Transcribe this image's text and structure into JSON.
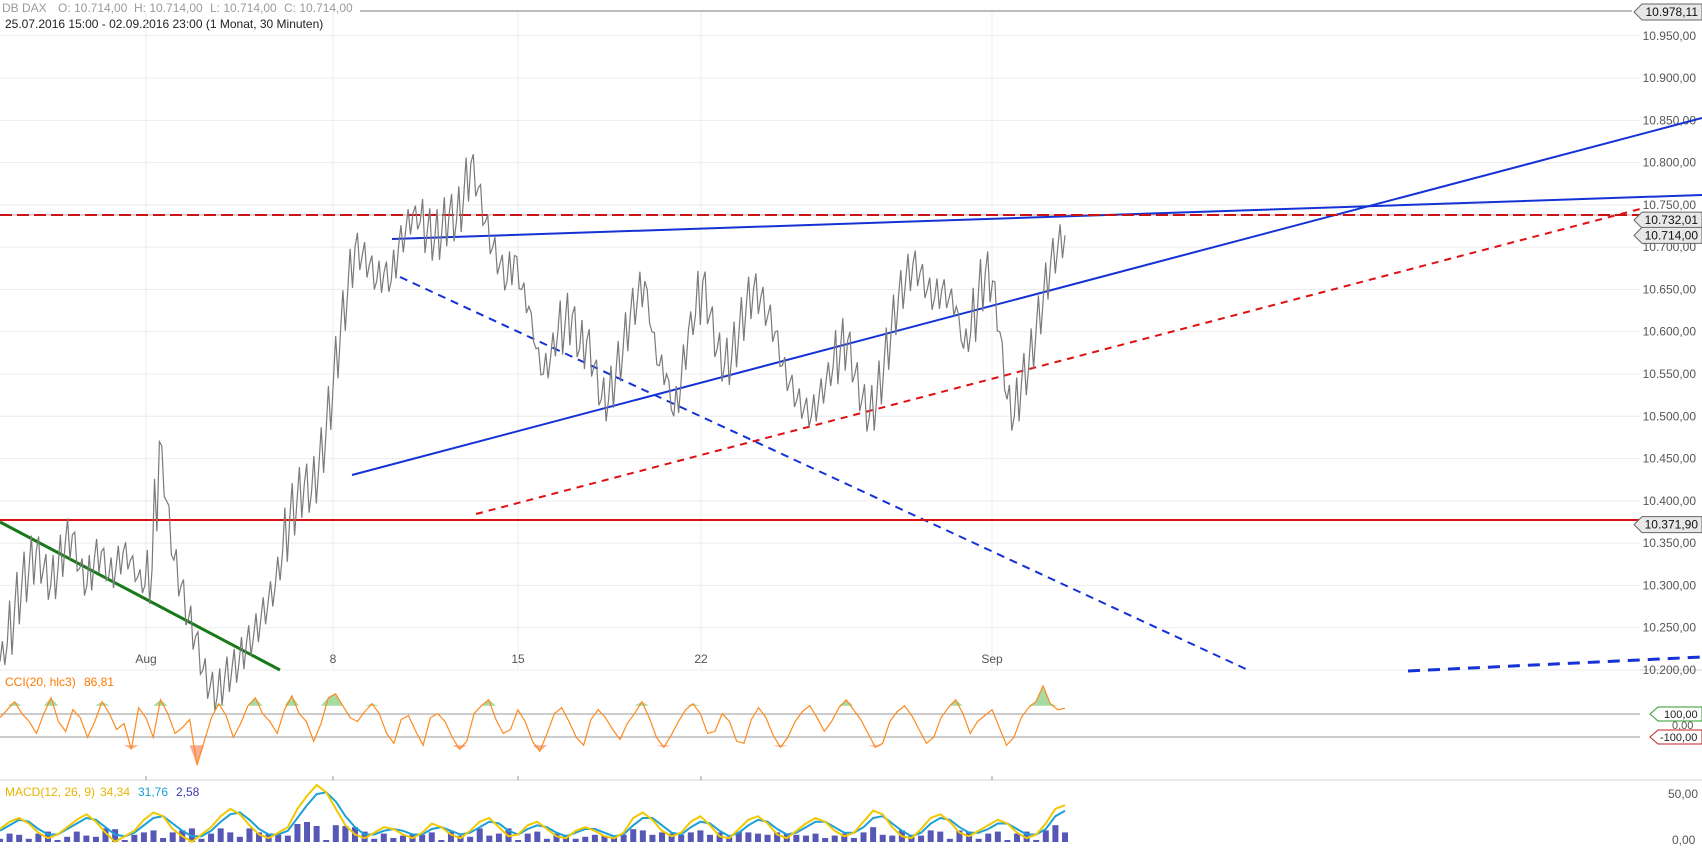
{
  "header": {
    "instrument": "DB DAX",
    "open": "O: 10.714,00",
    "high": "H: 10.714,00",
    "low": "L: 10.714,00",
    "close": "C: 10.714,00",
    "range": "25.07.2016 15:00 - 02.09.2016 23:00 (1 Monat, 30 Minuten)"
  },
  "colors": {
    "price": "#7a7a7a",
    "trend_blue": "#1432d6",
    "trend_red": "#e01010",
    "trend_green": "#1a7a1a",
    "cci_line": "#ff8a1e",
    "cci_fill_pos": "#8fd18a",
    "cci_fill_neg": "#f39a7a",
    "macd": "#f2c800",
    "macd_signal": "#1ca0d8",
    "macd_hist": "#3a3aa8"
  },
  "chart_data": [
    {
      "type": "line",
      "description_of_series": "30-minute price path (approximate, read from image)",
      "x_labels": [
        "Aug",
        "8",
        "15",
        "22",
        "Sep"
      ],
      "y_ticks": [
        "10.950,00",
        "10.900,00",
        "10.850,00",
        "10.800,00",
        "10.750,00",
        "10.700,00",
        "10.650,00",
        "10.600,00",
        "10.550,00",
        "10.500,00",
        "10.450,00",
        "10.400,00",
        "10.350,00",
        "10.300,00",
        "10.250,00",
        "10.200,00"
      ],
      "ylim": [
        10200,
        10978.11
      ],
      "series": [
        {
          "values": [
            10210,
            10230,
            10270,
            10300,
            10320,
            10340,
            10320,
            10300,
            10320,
            10350,
            10360,
            10320,
            10300,
            10330,
            10340,
            10310,
            10320,
            10340,
            10330,
            10310,
            10300,
            10320,
            10470,
            10400,
            10330,
            10300,
            10260,
            10240,
            10200,
            10180,
            10170,
            10190,
            10200,
            10210,
            10230,
            10240,
            10260,
            10280,
            10300,
            10340,
            10380,
            10400,
            10420,
            10410,
            10440,
            10480,
            10540,
            10600,
            10650,
            10700,
            10690,
            10680,
            10660,
            10670,
            10660,
            10700,
            10720,
            10740,
            10730,
            10720,
            10710,
            10720,
            10740,
            10730,
            10760,
            10800,
            10770,
            10730,
            10700,
            10680,
            10660,
            10690,
            10650,
            10630,
            10580,
            10550,
            10570,
            10600,
            10610,
            10620,
            10580,
            10590,
            10560,
            10520,
            10520,
            10550,
            10580,
            10620,
            10640,
            10660,
            10600,
            10560,
            10550,
            10500,
            10540,
            10600,
            10620,
            10660,
            10620,
            10580,
            10560,
            10570,
            10600,
            10630,
            10650,
            10640,
            10620,
            10600,
            10560,
            10540,
            10520,
            10510,
            10500,
            10520,
            10540,
            10560,
            10580,
            10590,
            10550,
            10520,
            10500,
            10520,
            10560,
            10600,
            10640,
            10660,
            10680,
            10670,
            10650,
            10640,
            10650,
            10640,
            10630,
            10580,
            10600,
            10640,
            10670,
            10660,
            10600,
            10520,
            10500,
            10540,
            10560,
            10600,
            10640,
            10680,
            10700,
            10714
          ]
        }
      ],
      "price_labels": [
        {
          "text": "10.978,11",
          "value": 10978.11,
          "kind": "top"
        },
        {
          "text": "10.732,01",
          "value": 10732.01,
          "kind": "resistance"
        },
        {
          "text": "10.714,00",
          "value": 10714.0,
          "kind": "last"
        },
        {
          "text": "10.371,90",
          "value": 10371.9,
          "kind": "support"
        }
      ]
    },
    {
      "type": "line",
      "title": "CCI(20, hlc3)",
      "current": "86,81",
      "levels": [
        {
          "text": "100,00",
          "value": 100
        },
        {
          "text": "0,00",
          "value": 0
        },
        {
          "text": "-100,00",
          "value": -100
        }
      ],
      "ylim": [
        -250,
        250
      ],
      "series": [
        {
          "name": "CCI",
          "values": [
            40,
            80,
            120,
            60,
            20,
            -40,
            60,
            140,
            20,
            -30,
            80,
            40,
            -60,
            20,
            120,
            60,
            -20,
            10,
            -120,
            90,
            40,
            -60,
            130,
            60,
            -40,
            -10,
            30,
            -200,
            -80,
            40,
            110,
            50,
            -60,
            10,
            100,
            140,
            60,
            20,
            -40,
            80,
            150,
            60,
            20,
            -80,
            10,
            140,
            160,
            100,
            40,
            20,
            70,
            110,
            60,
            -40,
            -90,
            30,
            50,
            -30,
            -100,
            40,
            60,
            20,
            -60,
            -120,
            -80,
            60,
            100,
            130,
            30,
            -40,
            -20,
            80,
            20,
            -80,
            -130,
            -40,
            60,
            90,
            20,
            -60,
            -100,
            30,
            80,
            40,
            -20,
            -70,
            10,
            60,
            120,
            40,
            -60,
            -110,
            -50,
            20,
            80,
            110,
            60,
            -40,
            -30,
            60,
            20,
            -80,
            -90,
            30,
            90,
            40,
            -50,
            -110,
            -60,
            20,
            70,
            100,
            40,
            -30,
            20,
            90,
            130,
            80,
            30,
            -40,
            -110,
            -90,
            20,
            70,
            100,
            50,
            -20,
            -90,
            -60,
            40,
            90,
            130,
            60,
            -40,
            20,
            50,
            80,
            -10,
            -100,
            -60,
            40,
            90,
            120,
            200,
            110,
            80,
            87
          ]
        }
      ]
    },
    {
      "type": "line",
      "title": "MACD(12, 26, 9)",
      "values_text": {
        "macd": "34,34",
        "signal": "31,76",
        "hist": "2,58"
      },
      "y_ticks": [
        "50,00",
        "0,00"
      ],
      "ylim": [
        -5,
        70
      ],
      "series": [
        {
          "name": "MACD",
          "values": [
            12,
            20,
            24,
            18,
            8,
            2,
            6,
            14,
            22,
            28,
            20,
            8,
            -2,
            4,
            10,
            22,
            30,
            26,
            12,
            4,
            -2,
            6,
            14,
            26,
            34,
            28,
            16,
            6,
            2,
            8,
            14,
            34,
            48,
            60,
            52,
            34,
            16,
            6,
            2,
            8,
            14,
            12,
            6,
            2,
            8,
            18,
            14,
            6,
            2,
            10,
            20,
            24,
            14,
            4,
            6,
            16,
            20,
            12,
            4,
            2,
            10,
            14,
            10,
            4,
            2,
            8,
            24,
            30,
            22,
            10,
            4,
            8,
            20,
            26,
            16,
            4,
            2,
            12,
            22,
            26,
            18,
            6,
            2,
            10,
            18,
            24,
            20,
            10,
            4,
            8,
            20,
            32,
            28,
            14,
            4,
            2,
            12,
            24,
            28,
            20,
            8,
            4,
            10,
            16,
            22,
            18,
            8,
            2,
            6,
            18,
            34,
            38
          ]
        },
        {
          "name": "Signal",
          "values": [
            10,
            16,
            22,
            20,
            12,
            6,
            6,
            12,
            18,
            24,
            22,
            14,
            6,
            4,
            8,
            16,
            24,
            26,
            18,
            10,
            4,
            4,
            10,
            20,
            28,
            30,
            22,
            12,
            6,
            6,
            10,
            24,
            38,
            50,
            52,
            42,
            26,
            14,
            6,
            6,
            10,
            12,
            10,
            6,
            6,
            12,
            14,
            10,
            6,
            8,
            14,
            20,
            18,
            10,
            6,
            12,
            16,
            14,
            8,
            4,
            8,
            12,
            12,
            8,
            4,
            6,
            16,
            24,
            24,
            16,
            8,
            6,
            14,
            20,
            18,
            10,
            4,
            8,
            16,
            22,
            20,
            12,
            6,
            8,
            14,
            20,
            20,
            14,
            8,
            8,
            14,
            24,
            26,
            18,
            10,
            4,
            8,
            18,
            24,
            22,
            14,
            8,
            8,
            12,
            18,
            18,
            12,
            6,
            6,
            12,
            26,
            32
          ]
        }
      ]
    }
  ]
}
